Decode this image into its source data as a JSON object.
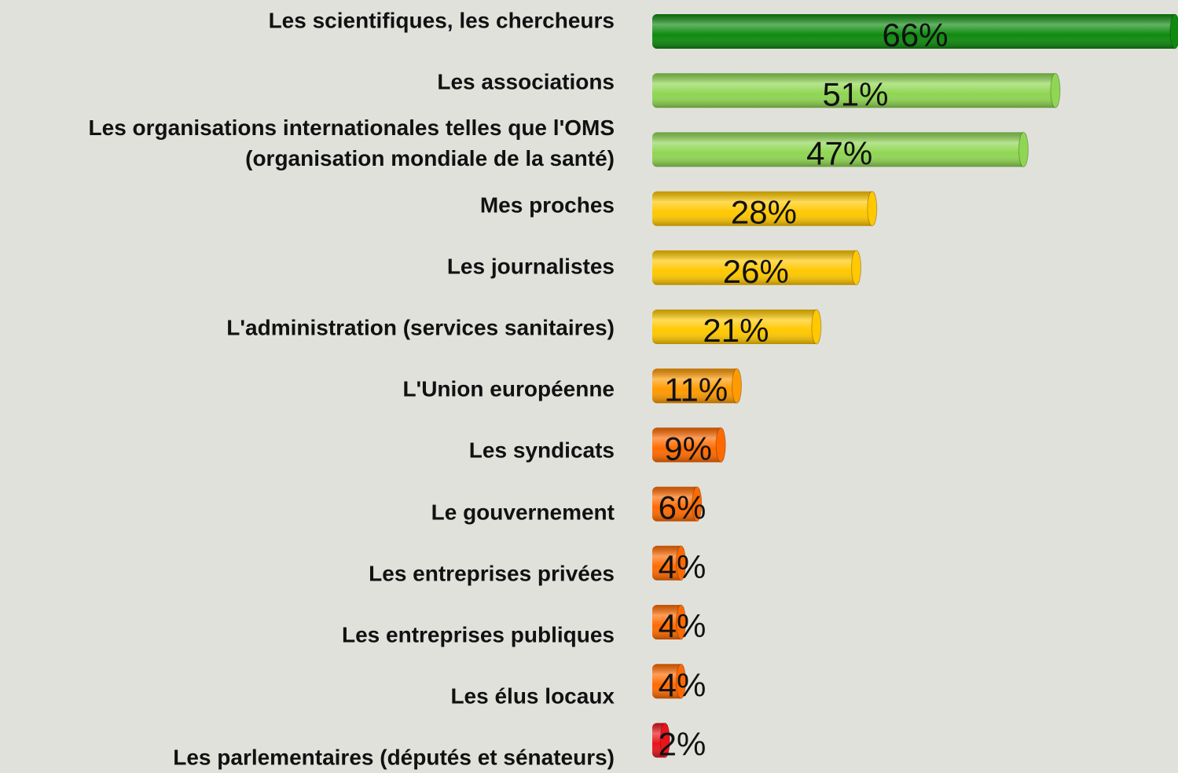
{
  "chart_data": {
    "type": "bar",
    "orientation": "horizontal",
    "categories": [
      "Les scientifiques, les chercheurs",
      "Les associations",
      "Les organisations internationales telles que l'OMS\n(organisation mondiale de la santé)",
      "Mes proches",
      "Les journalistes",
      "L'administration (services sanitaires)",
      "L'Union européenne",
      "Les syndicats",
      "Le gouvernement",
      "Les entreprises privées",
      "Les entreprises publiques",
      "Les élus locaux",
      "Les parlementaires (députés et sénateurs)"
    ],
    "values": [
      66,
      51,
      47,
      28,
      26,
      21,
      11,
      9,
      6,
      4,
      4,
      4,
      2
    ],
    "value_labels": [
      "66%",
      "51%",
      "47%",
      "28%",
      "26%",
      "21%",
      "11%",
      "9%",
      "6%",
      "4%",
      "4%",
      "4%",
      "2%"
    ],
    "colors": [
      "#0e8a0e",
      "#8fd652",
      "#8fd652",
      "#ffc800",
      "#ffc800",
      "#ffc800",
      "#ff9a00",
      "#ff6a00",
      "#ff6a00",
      "#ff6a00",
      "#ff6a00",
      "#ff6a00",
      "#e8141a"
    ]
  }
}
